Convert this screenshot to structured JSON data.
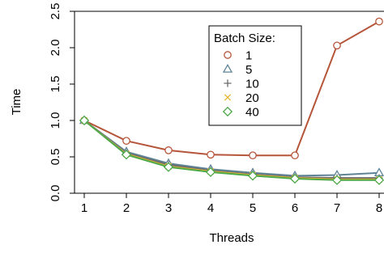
{
  "chart_data": {
    "type": "line",
    "title": "",
    "xlabel": "Threads",
    "ylabel": "Time",
    "x": [
      1,
      2,
      3,
      4,
      5,
      6,
      7,
      8
    ],
    "xlim": [
      1,
      8
    ],
    "ylim": [
      0,
      2.5
    ],
    "xticks": [
      "1",
      "2",
      "3",
      "4",
      "5",
      "6",
      "7",
      "8"
    ],
    "yticks": [
      "0.0",
      "0.5",
      "1.0",
      "1.5",
      "2.0",
      "2.5"
    ],
    "grid": false,
    "legend": {
      "title": "Batch Size:",
      "placement": "top-right"
    },
    "series": [
      {
        "name": "1",
        "marker": "circle",
        "color": "#b5553a",
        "values": [
          1.0,
          0.72,
          0.59,
          0.53,
          0.52,
          0.52,
          2.03,
          2.36
        ]
      },
      {
        "name": "5",
        "marker": "triangle",
        "color": "#5f8396",
        "values": [
          1.0,
          0.57,
          0.41,
          0.33,
          0.28,
          0.24,
          0.25,
          0.28
        ]
      },
      {
        "name": "10",
        "marker": "plus",
        "color": "#6b6b6b",
        "values": [
          1.0,
          0.55,
          0.39,
          0.31,
          0.26,
          0.22,
          0.21,
          0.21
        ]
      },
      {
        "name": "20",
        "marker": "cross",
        "color": "#e8b62d",
        "values": [
          1.0,
          0.54,
          0.37,
          0.3,
          0.25,
          0.21,
          0.19,
          0.19
        ]
      },
      {
        "name": "40",
        "marker": "diamond",
        "color": "#4da84a",
        "values": [
          1.0,
          0.53,
          0.36,
          0.29,
          0.24,
          0.2,
          0.18,
          0.18
        ]
      }
    ]
  }
}
